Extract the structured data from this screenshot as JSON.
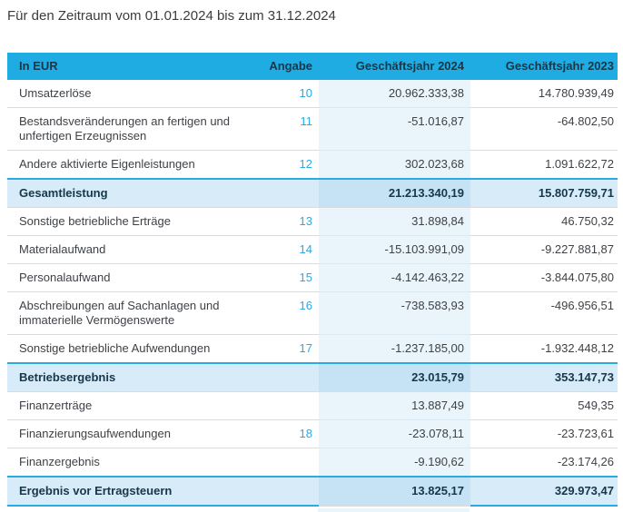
{
  "page": {
    "title": "Für den Zeitraum vom 01.01.2024 bis zum 31.12.2024"
  },
  "colors": {
    "accent": "#29ABE2",
    "header_bg": "#1FACE3",
    "fy2024_column_tint": "#E9F4FB",
    "total_row_bg": "#D7EBF8",
    "total_row_fy2024_bg": "#C6E3F5",
    "header_text": "#17374A",
    "body_text": "#3E4247"
  },
  "table": {
    "columns": [
      "In EUR",
      "Angabe",
      "Geschäftsjahr 2024",
      "Geschäftsjahr 2023"
    ],
    "rows": [
      {
        "label": "Umsatzerlöse",
        "note": "10",
        "fy2024": "20.962.333,38",
        "fy2023": "14.780.939,49",
        "emphasis": false
      },
      {
        "label": "Bestandsveränderungen an fertigen und unfertigen Erzeugnissen",
        "note": "11",
        "fy2024": "-51.016,87",
        "fy2023": "-64.802,50",
        "emphasis": false
      },
      {
        "label": "Andere aktivierte Eigenleistungen",
        "note": "12",
        "fy2024": "302.023,68",
        "fy2023": "1.091.622,72",
        "emphasis": false
      },
      {
        "label": "Gesamtleistung",
        "note": "",
        "fy2024": "21.213.340,19",
        "fy2023": "15.807.759,71",
        "emphasis": true
      },
      {
        "label": "Sonstige betriebliche Erträge",
        "note": "13",
        "fy2024": "31.898,84",
        "fy2023": "46.750,32",
        "emphasis": false
      },
      {
        "label": "Materialaufwand",
        "note": "14",
        "fy2024": "-15.103.991,09",
        "fy2023": "-9.227.881,87",
        "emphasis": false
      },
      {
        "label": "Personalaufwand",
        "note": "15",
        "fy2024": "-4.142.463,22",
        "fy2023": "-3.844.075,80",
        "emphasis": false
      },
      {
        "label": "Abschreibungen auf Sachanlagen und immaterielle Vermögenswerte",
        "note": "16",
        "fy2024": "-738.583,93",
        "fy2023": "-496.956,51",
        "emphasis": false
      },
      {
        "label": "Sonstige betriebliche Aufwendungen",
        "note": "17",
        "fy2024": "-1.237.185,00",
        "fy2023": "-1.932.448,12",
        "emphasis": false
      },
      {
        "label": "Betriebsergebnis",
        "note": "",
        "fy2024": "23.015,79",
        "fy2023": "353.147,73",
        "emphasis": true
      },
      {
        "label": "Finanzerträge",
        "note": "",
        "fy2024": "13.887,49",
        "fy2023": "549,35",
        "emphasis": false
      },
      {
        "label": "Finanzierungsaufwendungen",
        "note": "18",
        "fy2024": "-23.078,11",
        "fy2023": "-23.723,61",
        "emphasis": false
      },
      {
        "label": "Finanzergebnis",
        "note": "",
        "fy2024": "-9.190,62",
        "fy2023": "-23.174,26",
        "emphasis": false
      },
      {
        "label": "Ergebnis vor Ertragsteuern",
        "note": "",
        "fy2024": "13.825,17",
        "fy2023": "329.973,47",
        "emphasis": true
      }
    ]
  }
}
